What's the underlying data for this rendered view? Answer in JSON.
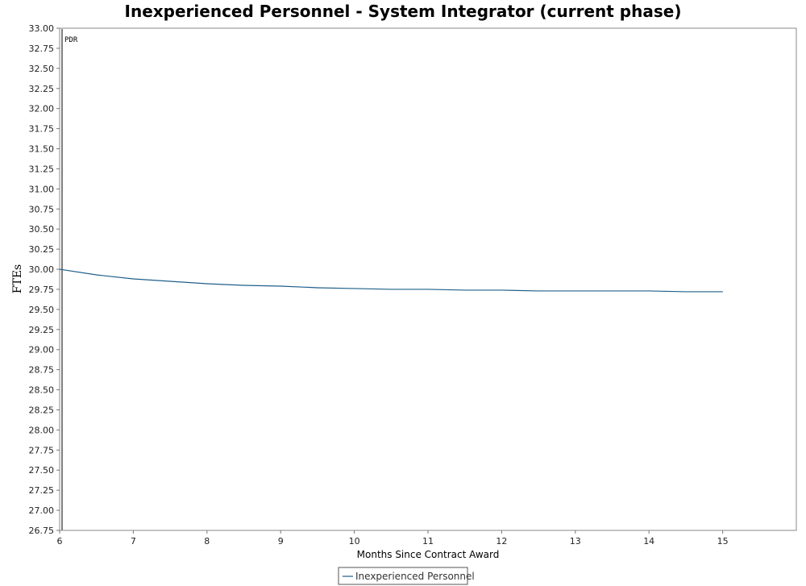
{
  "chart_data": {
    "type": "line",
    "title": "Inexperienced Personnel - System Integrator (current phase)",
    "xlabel": "Months Since Contract Award",
    "ylabel": "FTEs",
    "xlim": [
      6,
      16
    ],
    "ylim": [
      26.75,
      33.0
    ],
    "x_ticks": [
      "6",
      "7",
      "8",
      "9",
      "10",
      "11",
      "12",
      "13",
      "14",
      "15"
    ],
    "y_ticks": [
      "26.75",
      "27.00",
      "27.25",
      "27.50",
      "27.75",
      "28.00",
      "28.25",
      "28.50",
      "28.75",
      "29.00",
      "29.25",
      "29.50",
      "29.75",
      "30.00",
      "30.25",
      "30.50",
      "30.75",
      "31.00",
      "31.25",
      "31.50",
      "31.75",
      "32.00",
      "32.25",
      "32.50",
      "32.75",
      "33.00"
    ],
    "grid": false,
    "legend_position": "bottom-center",
    "annotations": [
      {
        "x": 6,
        "text": "PDR"
      }
    ],
    "series": [
      {
        "name": "Inexperienced Personnel",
        "color": "#1f5f8b",
        "x": [
          6,
          6.5,
          7,
          7.5,
          8,
          8.5,
          9,
          9.5,
          10,
          10.5,
          11,
          11.5,
          12,
          12.5,
          13,
          13.5,
          14,
          14.5,
          15
        ],
        "y": [
          30.0,
          29.93,
          29.88,
          29.85,
          29.82,
          29.8,
          29.79,
          29.77,
          29.76,
          29.75,
          29.75,
          29.74,
          29.74,
          29.73,
          29.73,
          29.73,
          29.73,
          29.72,
          29.72
        ]
      }
    ]
  }
}
